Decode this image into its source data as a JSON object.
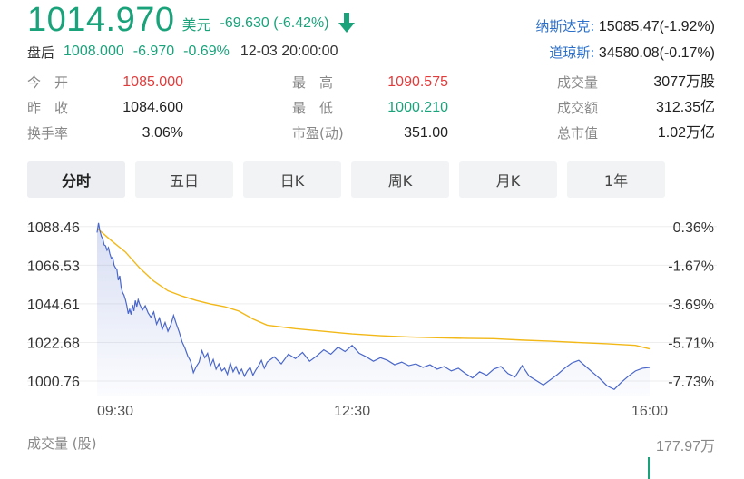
{
  "quote": {
    "price": "1014.970",
    "currency": "美元",
    "change": "-69.630 (-6.42%)",
    "direction_icon": "arrow-down-icon",
    "color_down": "#1aa37a",
    "color_up": "#e03c3c"
  },
  "after_hours": {
    "label": "盘后",
    "price": "1008.000",
    "change": "-6.970",
    "pct": "-0.69%",
    "time": "12-03 20:00:00"
  },
  "indices": [
    {
      "name": "纳斯达克:",
      "value": "15085.47(-1.92%)"
    },
    {
      "name": "道琼斯:",
      "value": "34580.08(-0.17%)"
    }
  ],
  "stats": {
    "open_label": "今　开",
    "open": "1085.000",
    "prev_close_label": "昨　收",
    "prev_close": "1084.600",
    "turnover_label": "换手率",
    "turnover": "3.06%",
    "high_label": "最　高",
    "high": "1090.575",
    "low_label": "最　低",
    "low": "1000.210",
    "pe_label": "市盈(动)",
    "pe": "351.00",
    "volume_label": "成交量",
    "volume": "3077万股",
    "amount_label": "成交额",
    "amount": "312.35亿",
    "mktcap_label": "总市值",
    "mktcap": "1.02万亿"
  },
  "tabs": [
    "分时",
    "五日",
    "日K",
    "周K",
    "月K",
    "1年"
  ],
  "active_tab": 0,
  "chart_data": {
    "type": "line",
    "y_ticks": [
      "1088.46",
      "1066.53",
      "1044.61",
      "1022.68",
      "1000.76"
    ],
    "y_pct_ticks": [
      "0.36%",
      "-1.67%",
      "-3.69%",
      "-5.71%",
      "-7.73%"
    ],
    "x_ticks": [
      "09:30",
      "12:30",
      "16:00"
    ],
    "ylim": [
      992,
      1094
    ],
    "series": [
      {
        "color": "#4a67c9",
        "x": [
          0,
          1,
          2,
          3,
          4,
          5,
          6,
          7,
          8,
          9,
          10,
          11,
          12,
          13,
          14,
          15,
          16,
          17,
          18,
          19,
          20,
          21,
          22,
          23,
          24,
          25,
          26,
          27,
          28,
          29,
          30,
          32,
          34,
          36,
          38,
          40,
          42,
          44,
          46,
          48,
          50,
          52,
          54,
          56,
          58,
          60,
          62,
          64,
          66,
          68,
          70,
          72,
          74,
          76,
          78,
          80,
          82,
          84,
          86,
          88,
          90,
          92,
          94,
          96,
          98,
          100,
          102,
          104,
          106,
          108,
          110,
          112,
          114,
          116,
          118,
          120,
          125,
          130,
          135,
          140,
          145,
          150,
          155,
          160,
          165,
          170,
          175,
          180,
          185,
          190,
          195,
          200,
          205,
          210,
          215,
          220,
          225,
          230,
          235,
          240,
          245,
          250,
          255,
          260,
          265,
          270,
          275,
          280,
          285,
          290,
          295,
          300,
          305,
          310,
          315,
          320,
          325,
          330,
          335,
          340,
          345,
          350,
          355,
          360,
          365,
          370,
          375,
          380,
          385,
          390
        ],
        "values": [
          1085.0,
          1090.5,
          1086.0,
          1083.0,
          1081.5,
          1078.0,
          1077.5,
          1075.0,
          1076.5,
          1073.0,
          1070.5,
          1071.0,
          1066.5,
          1065.0,
          1064.0,
          1058.0,
          1060.5,
          1054.0,
          1051.0,
          1049.5,
          1047.0,
          1043.5,
          1039.0,
          1041.5,
          1038.5,
          1044.0,
          1040.5,
          1046.5,
          1043.0,
          1047.0,
          1044.5,
          1041.0,
          1043.5,
          1039.5,
          1037.0,
          1040.0,
          1033.0,
          1036.5,
          1030.0,
          1034.0,
          1029.0,
          1032.5,
          1038.0,
          1033.0,
          1028.5,
          1023.0,
          1019.5,
          1015.0,
          1012.0,
          1005.5,
          1009.0,
          1011.5,
          1018.0,
          1014.0,
          1016.5,
          1009.5,
          1013.0,
          1007.5,
          1010.5,
          1006.5,
          1008.0,
          1004.5,
          1011.0,
          1006.0,
          1009.0,
          1005.0,
          1007.5,
          1003.5,
          1006.5,
          1008.5,
          1004.0,
          1007.0,
          1009.5,
          1012.5,
          1008.0,
          1011.5,
          1014.5,
          1010.5,
          1016.0,
          1013.5,
          1017.0,
          1012.0,
          1015.0,
          1018.5,
          1016.0,
          1020.0,
          1017.5,
          1021.0,
          1016.5,
          1014.5,
          1012.0,
          1014.0,
          1012.5,
          1010.0,
          1011.5,
          1009.5,
          1010.5,
          1008.5,
          1010.0,
          1007.5,
          1009.0,
          1006.5,
          1008.0,
          1005.0,
          1002.5,
          1006.0,
          1004.0,
          1007.5,
          1009.0,
          1005.0,
          1003.0,
          1009.5,
          1003.5,
          1001.0,
          998.5,
          1001.5,
          1004.5,
          1008.0,
          1011.0,
          1012.5,
          1009.0,
          1005.5,
          1002.0,
          998.0,
          996.0,
          1000.0,
          1003.5,
          1006.5,
          1008.0,
          1008.5
        ]
      },
      {
        "color": "#f2b817",
        "x": [
          0,
          10,
          20,
          30,
          40,
          50,
          60,
          70,
          80,
          90,
          100,
          110,
          120,
          140,
          160,
          180,
          200,
          220,
          240,
          260,
          280,
          300,
          320,
          340,
          360,
          380,
          390
        ],
        "values": [
          1087.5,
          1080.5,
          1074.0,
          1065.0,
          1057.5,
          1052.0,
          1049.0,
          1046.5,
          1044.5,
          1043.0,
          1040.5,
          1036.0,
          1032.5,
          1030.5,
          1029.0,
          1027.5,
          1026.5,
          1025.8,
          1025.3,
          1025.0,
          1024.8,
          1024.0,
          1023.4,
          1022.6,
          1021.9,
          1021.0,
          1019.0
        ]
      }
    ],
    "volume_label": "成交量 (股)",
    "volume_max": "177.97万",
    "volume_last": 20
  }
}
